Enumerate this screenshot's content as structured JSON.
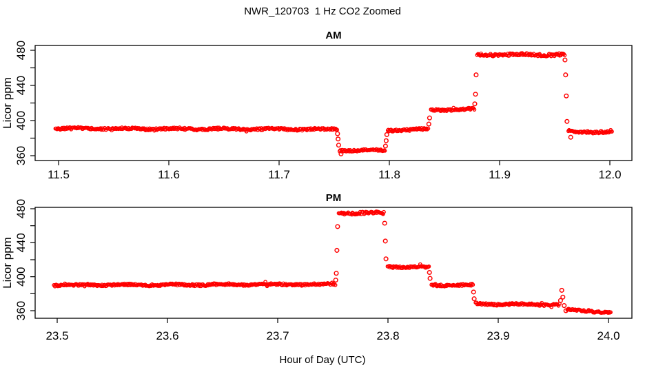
{
  "page": {
    "title": "NWR_120703  1 Hz CO2 Zoomed",
    "xlabel": "Hour of Day (UTC)"
  },
  "chart_data": [
    {
      "type": "scatter",
      "title": "AM",
      "xlabel": "",
      "ylabel": "Licor ppm",
      "marker": "open-circle",
      "color": "#ff0000",
      "grid": false,
      "xlim": [
        11.478,
        12.021
      ],
      "ylim": [
        354,
        486
      ],
      "xticks": [
        11.5,
        11.6,
        11.7,
        11.8,
        11.9,
        12.0
      ],
      "xtick_labels": [
        "11.5",
        "11.6",
        "11.7",
        "11.8",
        "11.9",
        "12.0"
      ],
      "yticks": [
        360,
        380,
        400,
        420,
        440,
        460,
        480
      ],
      "ytick_labels": [
        360,
        400,
        440,
        480
      ],
      "segments": [
        {
          "x0": 11.497,
          "x1": 11.7525,
          "v0": 391,
          "v1": 390,
          "noise": 1.9
        },
        {
          "x0": 11.755,
          "x1": 11.796,
          "v0": 366,
          "v1": 366,
          "noise": 1.8
        },
        {
          "x0": 11.7985,
          "x1": 11.835,
          "v0": 389,
          "v1": 390,
          "noise": 1.8
        },
        {
          "x0": 11.8375,
          "x1": 11.877,
          "v0": 412,
          "v1": 413,
          "noise": 1.8
        },
        {
          "x0": 11.8795,
          "x1": 11.959,
          "v0": 475,
          "v1": 475,
          "noise": 2.3
        },
        {
          "x0": 11.9625,
          "x1": 12.002,
          "v0": 387,
          "v1": 387,
          "noise": 1.8
        }
      ],
      "transitions": [
        {
          "x": 11.753,
          "v": 385
        },
        {
          "x": 11.7535,
          "v": 379
        },
        {
          "x": 11.754,
          "v": 372
        },
        {
          "x": 11.7562,
          "v": 362
        },
        {
          "x": 11.7965,
          "v": 371
        },
        {
          "x": 11.7971,
          "v": 377
        },
        {
          "x": 11.7977,
          "v": 384
        },
        {
          "x": 11.8358,
          "v": 396
        },
        {
          "x": 11.8365,
          "v": 403
        },
        {
          "x": 11.8775,
          "v": 419
        },
        {
          "x": 11.8781,
          "v": 430
        },
        {
          "x": 11.8787,
          "v": 452
        },
        {
          "x": 11.9593,
          "v": 469
        },
        {
          "x": 11.9599,
          "v": 452
        },
        {
          "x": 11.9605,
          "v": 428
        },
        {
          "x": 11.9611,
          "v": 399
        },
        {
          "x": 11.9645,
          "v": 381
        }
      ]
    },
    {
      "type": "scatter",
      "title": "PM",
      "xlabel": "",
      "ylabel": "Licor ppm",
      "marker": "open-circle",
      "color": "#ff0000",
      "grid": false,
      "xlim": [
        23.478,
        24.021
      ],
      "ylim": [
        354,
        486
      ],
      "xticks": [
        23.5,
        23.6,
        23.7,
        23.8,
        23.9,
        24.0
      ],
      "xtick_labels": [
        "23.5",
        "23.6",
        "23.7",
        "23.8",
        "23.9",
        "24.0"
      ],
      "yticks": [
        360,
        380,
        400,
        420,
        440,
        460,
        480
      ],
      "ytick_labels": [
        360,
        400,
        440,
        480
      ],
      "segments": [
        {
          "x0": 23.497,
          "x1": 23.752,
          "v0": 390,
          "v1": 391,
          "noise": 1.9
        },
        {
          "x0": 23.7555,
          "x1": 23.7965,
          "v0": 475,
          "v1": 475,
          "noise": 2.3
        },
        {
          "x0": 23.7995,
          "x1": 23.837,
          "v0": 412,
          "v1": 411,
          "noise": 1.8
        },
        {
          "x0": 23.8395,
          "x1": 23.877,
          "v0": 390,
          "v1": 390,
          "noise": 1.8
        },
        {
          "x0": 23.8795,
          "x1": 23.9555,
          "v0": 368,
          "v1": 367,
          "noise": 1.8
        },
        {
          "x0": 23.9625,
          "x1": 24.002,
          "v0": 361,
          "v1": 358,
          "noise": 1.5
        }
      ],
      "transitions": [
        {
          "x": 23.7526,
          "v": 396
        },
        {
          "x": 23.7531,
          "v": 404
        },
        {
          "x": 23.7537,
          "v": 431
        },
        {
          "x": 23.7543,
          "v": 459
        },
        {
          "x": 23.797,
          "v": 463
        },
        {
          "x": 23.7976,
          "v": 442
        },
        {
          "x": 23.7982,
          "v": 421
        },
        {
          "x": 23.8376,
          "v": 405
        },
        {
          "x": 23.8382,
          "v": 398
        },
        {
          "x": 23.8776,
          "v": 382
        },
        {
          "x": 23.8782,
          "v": 374
        },
        {
          "x": 23.9565,
          "v": 372
        },
        {
          "x": 23.9576,
          "v": 384
        },
        {
          "x": 23.9586,
          "v": 376
        },
        {
          "x": 23.9598,
          "v": 366
        },
        {
          "x": 23.9614,
          "v": 360
        }
      ]
    }
  ]
}
